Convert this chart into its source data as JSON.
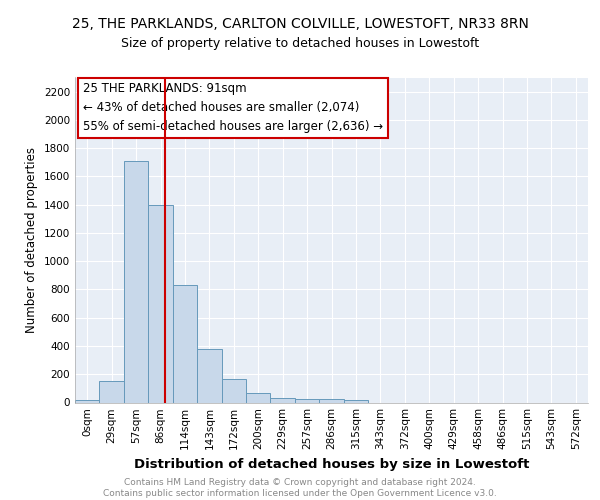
{
  "title1": "25, THE PARKLANDS, CARLTON COLVILLE, LOWESTOFT, NR33 8RN",
  "title2": "Size of property relative to detached houses in Lowestoft",
  "xlabel": "Distribution of detached houses by size in Lowestoft",
  "ylabel": "Number of detached properties",
  "bar_color": "#c8d8ea",
  "bar_edge_color": "#6699bb",
  "bins": [
    "0sqm",
    "29sqm",
    "57sqm",
    "86sqm",
    "114sqm",
    "143sqm",
    "172sqm",
    "200sqm",
    "229sqm",
    "257sqm",
    "286sqm",
    "315sqm",
    "343sqm",
    "372sqm",
    "400sqm",
    "429sqm",
    "458sqm",
    "486sqm",
    "515sqm",
    "543sqm",
    "572sqm"
  ],
  "values": [
    20,
    155,
    1710,
    1400,
    830,
    380,
    165,
    70,
    35,
    25,
    25,
    20,
    0,
    0,
    0,
    0,
    0,
    0,
    0,
    0,
    0
  ],
  "ylim": [
    0,
    2300
  ],
  "vline_color": "#cc0000",
  "annotation_text": "25 THE PARKLANDS: 91sqm\n← 43% of detached houses are smaller (2,074)\n55% of semi-detached houses are larger (2,636) →",
  "footer_text": "Contains HM Land Registry data © Crown copyright and database right 2024.\nContains public sector information licensed under the Open Government Licence v3.0.",
  "bg_color": "#e8eef6",
  "grid_color": "#ffffff",
  "title1_fontsize": 10,
  "title2_fontsize": 9,
  "xlabel_fontsize": 9.5,
  "ylabel_fontsize": 8.5,
  "tick_fontsize": 7.5,
  "annot_fontsize": 8.5,
  "footer_fontsize": 6.5,
  "yticks": [
    0,
    200,
    400,
    600,
    800,
    1000,
    1200,
    1400,
    1600,
    1800,
    2000,
    2200
  ]
}
